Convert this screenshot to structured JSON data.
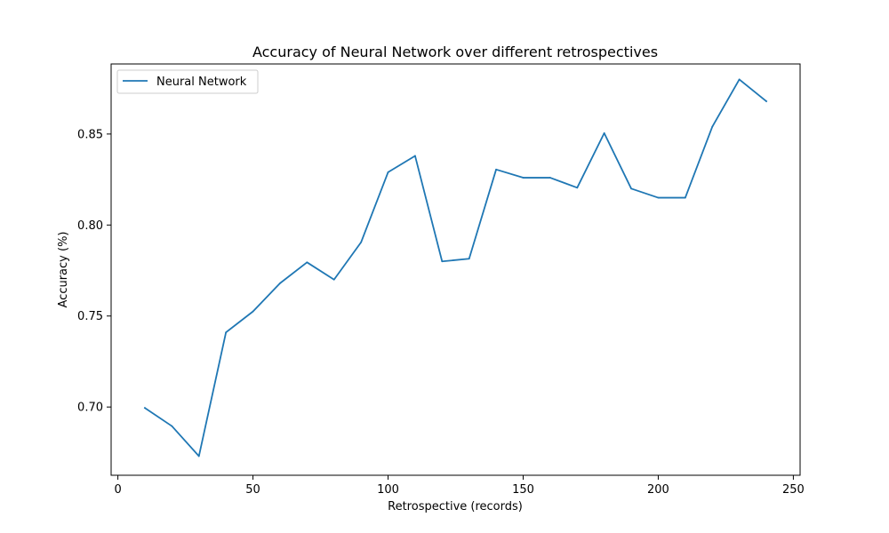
{
  "chart_data": {
    "type": "line",
    "title": "Accuracy of Neural Network over different retrospectives",
    "xlabel": "Retrospective (records)",
    "ylabel": "Accuracy (%)",
    "xlim": [
      -2.5,
      252.5
    ],
    "ylim": [
      0.6625,
      0.8885
    ],
    "xticks": [
      0,
      50,
      100,
      150,
      200,
      250
    ],
    "xtick_labels": [
      "0",
      "50",
      "100",
      "150",
      "200",
      "250"
    ],
    "yticks": [
      0.7,
      0.75,
      0.8,
      0.85
    ],
    "ytick_labels": [
      "0.70",
      "0.75",
      "0.80",
      "0.85"
    ],
    "grid": false,
    "legend_position": "top-left",
    "series": [
      {
        "name": "Neural Network",
        "color": "#1f77b4",
        "x": [
          10,
          20,
          30,
          40,
          50,
          60,
          70,
          80,
          90,
          100,
          110,
          120,
          130,
          140,
          150,
          160,
          170,
          180,
          190,
          200,
          210,
          220,
          230,
          240
        ],
        "y": [
          0.6995,
          0.6895,
          0.673,
          0.741,
          0.7525,
          0.768,
          0.7795,
          0.77,
          0.7905,
          0.829,
          0.838,
          0.78,
          0.7815,
          0.8305,
          0.826,
          0.826,
          0.8205,
          0.8505,
          0.82,
          0.815,
          0.815,
          0.854,
          0.88,
          0.868
        ]
      }
    ]
  }
}
